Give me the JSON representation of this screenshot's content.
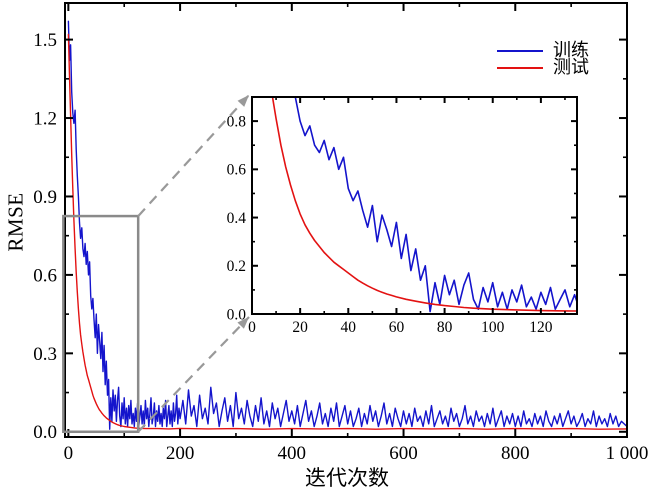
{
  "chart_data": {
    "type": "line",
    "title": "",
    "xlabel": "迭代次数",
    "ylabel": "RMSE",
    "xlim": [
      -6,
      1000
    ],
    "ylim": [
      -0.02,
      1.64
    ],
    "grid": false,
    "legend_position": "top-right",
    "legend": [
      "训练",
      "测试"
    ],
    "xticks": {
      "major": [
        0,
        200,
        400,
        600,
        800,
        1000
      ],
      "labels": [
        "0",
        "200",
        "400",
        "600",
        "800",
        "1 000"
      ],
      "minor": [
        100,
        300,
        500,
        700,
        900
      ]
    },
    "yticks": {
      "major": [
        0,
        0.3,
        0.6,
        0.9,
        1.2,
        1.5
      ],
      "labels": [
        "0.0",
        "0.3",
        "0.6",
        "0.9",
        "1.2",
        "1.5"
      ],
      "minor": [
        0.15,
        0.45,
        0.75,
        1.05,
        1.35
      ]
    },
    "series": [
      {
        "name": "训练",
        "color": "#1414cc",
        "segments": [
          {
            "x0": 0,
            "dx": 2,
            "values": [
              1.57,
              1.42,
              1.48,
              1.3,
              1.22,
              1.18,
              1.23,
              1.08,
              0.98,
              0.9,
              0.8,
              0.74,
              0.78,
              0.7,
              0.67,
              0.72,
              0.64,
              0.69,
              0.6,
              0.65,
              0.52,
              0.47,
              0.51,
              0.43,
              0.36,
              0.45,
              0.3,
              0.41,
              0.35,
              0.28,
              0.38,
              0.23,
              0.33,
              0.18,
              0.27,
              0.14,
              0.2,
              0.01,
              0.13,
              0.04,
              0.16,
              0.08,
              0.14,
              0.04,
              0.12,
              0.17,
              0.06,
              0.02,
              0.11,
              0.05,
              0.13,
              0.03,
              0.09,
              0.02,
              0.1,
              0.05,
              0.12,
              0.03,
              0.07,
              0.02,
              0.09,
              0.04,
              0.11,
              0.02,
              0.06,
              0.1,
              0.03,
              0.08,
              0.02,
              0.12,
              0.05,
              0.09,
              0.02,
              0.07,
              0.13,
              0.03,
              0.06,
              0.11,
              0.02,
              0.08,
              0.04,
              0.1,
              0.03,
              0.07,
              0.02,
              0.09,
              0.05,
              0.12,
              0.02,
              0.06,
              0.1,
              0.03,
              0.08,
              0.02,
              0.11,
              0.04,
              0.07,
              0.14,
              0.03,
              0.09,
              0.05
            ]
          },
          {
            "x0": 200,
            "dx": 5,
            "values": [
              0.05,
              0.12,
              0.03,
              0.16,
              0.06,
              0.1,
              0.02,
              0.14,
              0.05,
              0.09,
              0.03,
              0.17,
              0.07,
              0.11,
              0.02,
              0.08,
              0.13,
              0.04,
              0.1,
              0.02,
              0.15,
              0.05,
              0.09,
              0.03,
              0.12,
              0.06,
              0.02,
              0.1,
              0.04,
              0.13,
              0.03,
              0.08,
              0.02,
              0.11,
              0.05,
              0.09,
              0.02,
              0.07,
              0.12,
              0.04,
              0.08,
              0.03,
              0.1,
              0.02,
              0.07,
              0.12,
              0.04,
              0.08,
              0.02,
              0.06,
              0.11,
              0.03,
              0.07,
              0.02,
              0.09,
              0.04,
              0.11,
              0.02,
              0.06,
              0.1,
              0.03,
              0.08,
              0.02,
              0.05,
              0.09,
              0.02,
              0.07,
              0.03,
              0.1,
              0.04,
              0.08,
              0.02,
              0.06,
              0.11,
              0.03,
              0.07,
              0.02,
              0.09,
              0.05,
              0.02,
              0.08,
              0.03,
              0.07,
              0.02,
              0.09,
              0.04,
              0.06,
              0.02,
              0.08,
              0.03,
              0.1,
              0.02,
              0.05,
              0.08,
              0.03,
              0.06,
              0.02,
              0.09,
              0.04,
              0.07,
              0.02,
              0.05,
              0.1,
              0.03,
              0.06,
              0.02,
              0.08,
              0.04,
              0.06,
              0.02,
              0.07,
              0.03,
              0.09,
              0.02,
              0.05,
              0.08,
              0.02,
              0.06,
              0.03,
              0.07,
              0.02,
              0.06,
              0.02,
              0.08,
              0.03,
              0.05,
              0.02,
              0.07,
              0.03,
              0.06,
              0.02,
              0.08,
              0.04,
              0.02,
              0.06,
              0.03,
              0.07,
              0.02,
              0.05,
              0.08,
              0.03,
              0.06,
              0.02,
              0.04,
              0.07,
              0.02,
              0.05,
              0.03,
              0.08,
              0.02,
              0.06,
              0.03,
              0.05,
              0.02,
              0.07,
              0.03,
              0.06,
              0.02,
              0.04,
              0.03,
              0.02
            ]
          }
        ]
      },
      {
        "name": "测试",
        "color": "#e31212",
        "points": [
          [
            0,
            1.52
          ],
          [
            2,
            1.36
          ],
          [
            4,
            1.21
          ],
          [
            6,
            1.06
          ],
          [
            8,
            0.93
          ],
          [
            10,
            0.81
          ],
          [
            12,
            0.7
          ],
          [
            14,
            0.61
          ],
          [
            16,
            0.535
          ],
          [
            18,
            0.47
          ],
          [
            20,
            0.415
          ],
          [
            22,
            0.37
          ],
          [
            24,
            0.335
          ],
          [
            26,
            0.305
          ],
          [
            28,
            0.28
          ],
          [
            30,
            0.255
          ],
          [
            32,
            0.235
          ],
          [
            34,
            0.215
          ],
          [
            36,
            0.2
          ],
          [
            38,
            0.185
          ],
          [
            40,
            0.17
          ],
          [
            42,
            0.155
          ],
          [
            44,
            0.14
          ],
          [
            46,
            0.128
          ],
          [
            48,
            0.117
          ],
          [
            50,
            0.107
          ],
          [
            52,
            0.098
          ],
          [
            54,
            0.09
          ],
          [
            56,
            0.083
          ],
          [
            58,
            0.077
          ],
          [
            60,
            0.071
          ],
          [
            64,
            0.061
          ],
          [
            68,
            0.053
          ],
          [
            72,
            0.046
          ],
          [
            76,
            0.04
          ],
          [
            80,
            0.035
          ],
          [
            84,
            0.031
          ],
          [
            88,
            0.027
          ],
          [
            92,
            0.024
          ],
          [
            96,
            0.022
          ],
          [
            100,
            0.02
          ],
          [
            110,
            0.017
          ],
          [
            120,
            0.014
          ],
          [
            130,
            0.013
          ],
          [
            140,
            0.012
          ],
          [
            160,
            0.012
          ],
          [
            180,
            0.011
          ],
          [
            200,
            0.013
          ],
          [
            250,
            0.011
          ],
          [
            300,
            0.012
          ],
          [
            350,
            0.01
          ],
          [
            400,
            0.012
          ],
          [
            450,
            0.011
          ],
          [
            500,
            0.012
          ],
          [
            550,
            0.01
          ],
          [
            600,
            0.012
          ],
          [
            650,
            0.011
          ],
          [
            700,
            0.012
          ],
          [
            750,
            0.01
          ],
          [
            800,
            0.012
          ],
          [
            850,
            0.011
          ],
          [
            900,
            0.012
          ],
          [
            950,
            0.01
          ],
          [
            1000,
            0.011
          ]
        ]
      }
    ],
    "inset": {
      "xlim": [
        0,
        135
      ],
      "ylim": [
        0,
        0.9
      ],
      "xticks": {
        "major": [
          0,
          20,
          40,
          60,
          80,
          100,
          120
        ],
        "labels": [
          "0",
          "20",
          "40",
          "60",
          "80",
          "100",
          "120"
        ],
        "minor": [
          10,
          30,
          50,
          70,
          90,
          110,
          130
        ]
      },
      "yticks": {
        "major": [
          0,
          0.2,
          0.4,
          0.6,
          0.8
        ],
        "labels": [
          "0.0",
          "0.2",
          "0.4",
          "0.6",
          "0.8"
        ],
        "minor": [
          0.1,
          0.3,
          0.5,
          0.7
        ]
      }
    },
    "zoom_region": {
      "x0": -9,
      "x1": 125,
      "y0": 0,
      "y1": 0.825
    },
    "colors": {
      "train": "#1414cc",
      "test": "#e31212",
      "zoom_box": "#8a8a8a",
      "connector": "#999999",
      "axis": "#000000"
    }
  }
}
